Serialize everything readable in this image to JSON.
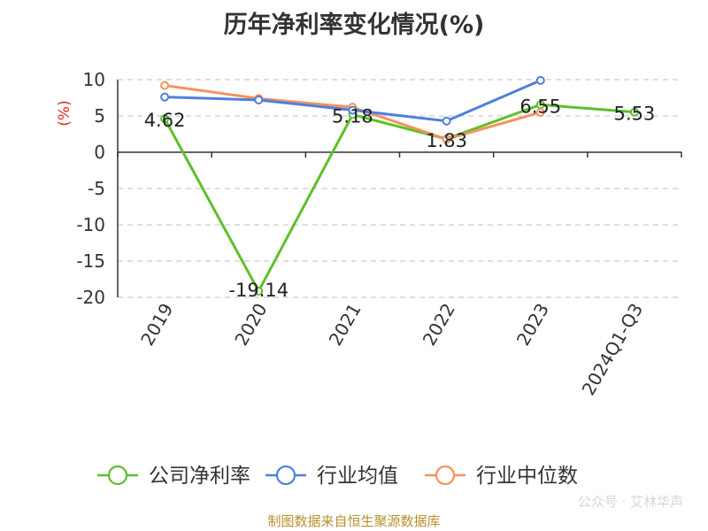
{
  "title": "历年净利率变化情况(%)",
  "footer": "制图数据来自恒生聚源数据库",
  "watermark": "公众号 · 艾林华声",
  "chart_data": {
    "type": "line",
    "title": "历年净利率变化情况(%)",
    "ylabel": "(%)",
    "categories": [
      "2019",
      "2020",
      "2021",
      "2022",
      "2023",
      "2024Q1-Q3"
    ],
    "ylim": [
      -20,
      10
    ],
    "yticks": [
      10,
      5,
      0,
      -5,
      -10,
      -15,
      -20
    ],
    "grid": true,
    "legend_position": "bottom",
    "series": [
      {
        "name": "公司净利率",
        "color": "#5cc12a",
        "values": [
          4.62,
          -19.14,
          5.18,
          1.83,
          6.55,
          5.53
        ],
        "labels": [
          "4.62",
          "-19.14",
          "5.18",
          "1.83",
          "6.55",
          "5.53"
        ]
      },
      {
        "name": "行业均值",
        "color": "#4f80dc",
        "values": [
          7.6,
          7.2,
          5.8,
          4.3,
          9.9,
          null
        ]
      },
      {
        "name": "行业中位数",
        "color": "#f5925e",
        "values": [
          9.2,
          7.4,
          6.2,
          1.8,
          5.5,
          null
        ]
      }
    ]
  }
}
